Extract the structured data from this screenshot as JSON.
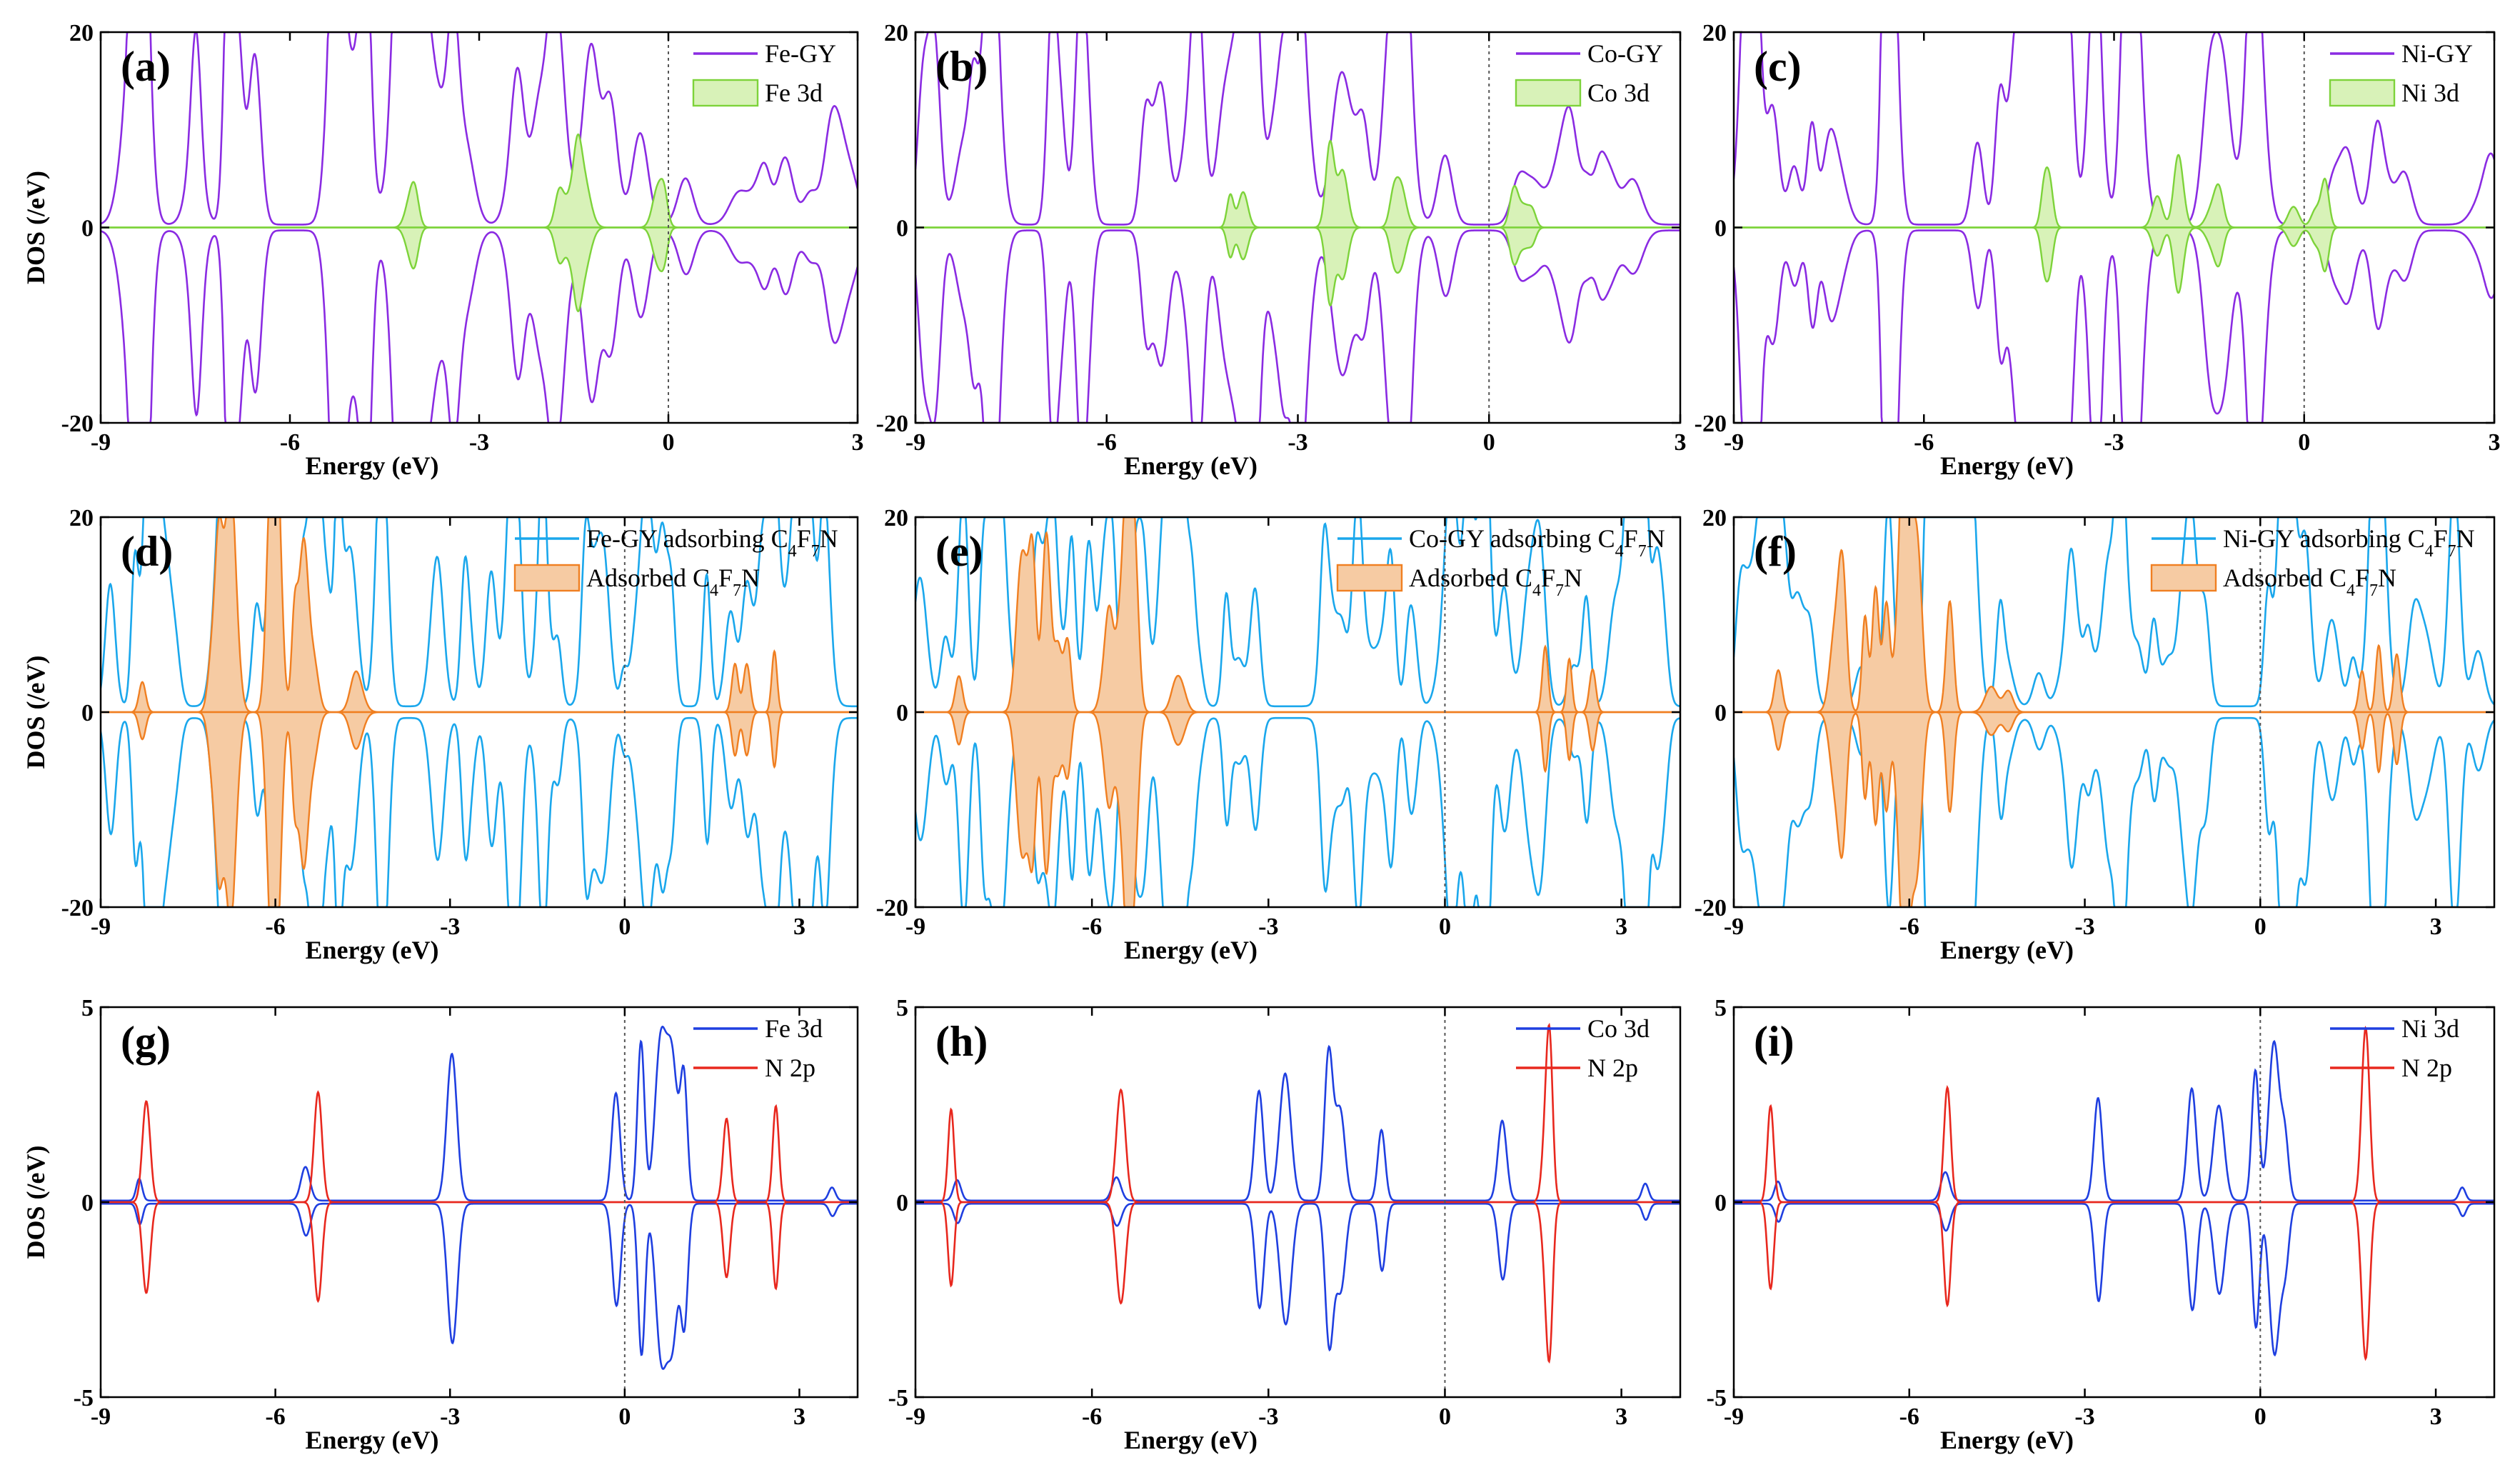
{
  "figure": {
    "panel_rows": [
      {
        "layout_row": 0,
        "panels": [
          "a",
          "b",
          "c"
        ]
      },
      {
        "layout_row": 1,
        "panels": [
          "d",
          "e",
          "f"
        ]
      },
      {
        "layout_row": 2,
        "panels": [
          "g",
          "h",
          "i"
        ]
      }
    ]
  },
  "chart_data": [
    {
      "panel": "(a)",
      "type": "line",
      "metal": "Fe",
      "kind": "metal_total",
      "xlabel": "Energy (eV)",
      "ylabel": "DOS (/eV)",
      "xlim": [
        -9,
        3
      ],
      "ylim": [
        -20,
        20
      ],
      "xticks": [
        -9,
        -6,
        -3,
        0,
        3
      ],
      "yticks": [
        -20,
        0,
        20
      ],
      "xtick_labels": [
        "-9",
        "-6",
        "-3",
        "0",
        "3"
      ],
      "ytick_labels": [
        "-20",
        "0",
        "20"
      ],
      "fermi_line": 0,
      "legend_placement": "top-right",
      "series": [
        {
          "name": "Fe-GY",
          "style": "line",
          "color": "#8a2be2"
        },
        {
          "name": "Fe 3d",
          "style": "filled",
          "color": "#7dd33a",
          "fill": "#d8f2b8"
        }
      ]
    },
    {
      "panel": "(b)",
      "type": "line",
      "metal": "Co",
      "kind": "metal_total",
      "xlabel": "Energy (eV)",
      "ylabel": "",
      "xlim": [
        -9,
        3
      ],
      "ylim": [
        -20,
        20
      ],
      "xticks": [
        -9,
        -6,
        -3,
        0,
        3
      ],
      "yticks": [
        -20,
        0,
        20
      ],
      "xtick_labels": [
        "-9",
        "-6",
        "-3",
        "0",
        "3"
      ],
      "ytick_labels": [
        "-20",
        "0",
        "20"
      ],
      "fermi_line": 0,
      "legend_placement": "top-right",
      "series": [
        {
          "name": "Co-GY",
          "style": "line",
          "color": "#8a2be2"
        },
        {
          "name": "Co 3d",
          "style": "filled",
          "color": "#7dd33a",
          "fill": "#d8f2b8"
        }
      ]
    },
    {
      "panel": "(c)",
      "type": "line",
      "metal": "Ni",
      "kind": "metal_total",
      "xlabel": "Energy (eV)",
      "ylabel": "",
      "xlim": [
        -9,
        3
      ],
      "ylim": [
        -20,
        20
      ],
      "xticks": [
        -9,
        -6,
        -3,
        0,
        3
      ],
      "yticks": [
        -20,
        0,
        20
      ],
      "xtick_labels": [
        "-9",
        "-6",
        "-3",
        "0",
        "3"
      ],
      "ytick_labels": [
        "-20",
        "0",
        "20"
      ],
      "fermi_line": 0,
      "legend_placement": "top-right",
      "series": [
        {
          "name": "Ni-GY",
          "style": "line",
          "color": "#8a2be2"
        },
        {
          "name": "Ni 3d",
          "style": "filled",
          "color": "#7dd33a",
          "fill": "#d8f2b8"
        }
      ]
    },
    {
      "panel": "(d)",
      "type": "line",
      "metal": "Fe",
      "kind": "adsorption",
      "xlabel": "Energy (eV)",
      "ylabel": "DOS (/eV)",
      "xlim": [
        -9,
        4
      ],
      "ylim": [
        -20,
        20
      ],
      "xticks": [
        -9,
        -6,
        -3,
        0,
        3
      ],
      "yticks": [
        -20,
        0,
        20
      ],
      "xtick_labels": [
        "-9",
        "-6",
        "-3",
        "0",
        "3"
      ],
      "ytick_labels": [
        "-20",
        "0",
        "20"
      ],
      "fermi_line": 0,
      "legend_placement": "top-right",
      "series": [
        {
          "name": "Fe-GY adsorbing C4F7N",
          "style": "line",
          "color": "#1aa7ec"
        },
        {
          "name": "Adsorbed C4F7N",
          "style": "filled",
          "color": "#f07f21",
          "fill": "#f6cba3"
        }
      ]
    },
    {
      "panel": "(e)",
      "type": "line",
      "metal": "Co",
      "kind": "adsorption",
      "xlabel": "Energy (eV)",
      "ylabel": "",
      "xlim": [
        -9,
        4
      ],
      "ylim": [
        -20,
        20
      ],
      "xticks": [
        -9,
        -6,
        -3,
        0,
        3
      ],
      "yticks": [
        -20,
        0,
        20
      ],
      "xtick_labels": [
        "-9",
        "-6",
        "-3",
        "0",
        "3"
      ],
      "ytick_labels": [
        "-20",
        "0",
        "20"
      ],
      "fermi_line": 0,
      "legend_placement": "top-right",
      "series": [
        {
          "name": "Co-GY adsorbing C4F7N",
          "style": "line",
          "color": "#1aa7ec"
        },
        {
          "name": "Adsorbed C4F7N",
          "style": "filled",
          "color": "#f07f21",
          "fill": "#f6cba3"
        }
      ]
    },
    {
      "panel": "(f)",
      "type": "line",
      "metal": "Ni",
      "kind": "adsorption",
      "xlabel": "Energy (eV)",
      "ylabel": "",
      "xlim": [
        -9,
        4
      ],
      "ylim": [
        -20,
        20
      ],
      "xticks": [
        -9,
        -6,
        -3,
        0,
        3
      ],
      "yticks": [
        -20,
        0,
        20
      ],
      "xtick_labels": [
        "-9",
        "-6",
        "-3",
        "0",
        "3"
      ],
      "ytick_labels": [
        "-20",
        "0",
        "20"
      ],
      "fermi_line": 0,
      "legend_placement": "top-right",
      "series": [
        {
          "name": "Ni-GY adsorbing C4F7N",
          "style": "line",
          "color": "#1aa7ec"
        },
        {
          "name": "Adsorbed C4F7N",
          "style": "filled",
          "color": "#f07f21",
          "fill": "#f6cba3"
        }
      ]
    },
    {
      "panel": "(g)",
      "type": "line",
      "metal": "Fe",
      "kind": "orbital",
      "xlabel": "Energy (eV)",
      "ylabel": "DOS (/eV)",
      "xlim": [
        -9,
        4
      ],
      "ylim": [
        -5,
        5
      ],
      "xticks": [
        -9,
        -6,
        -3,
        0,
        3
      ],
      "yticks": [
        -5,
        0,
        5
      ],
      "xtick_labels": [
        "-9",
        "-6",
        "-3",
        "0",
        "3"
      ],
      "ytick_labels": [
        "-5",
        "0",
        "5"
      ],
      "fermi_line": 0,
      "legend_placement": "top-right",
      "series": [
        {
          "name": "Fe 3d",
          "style": "line",
          "color": "#1f3fe0"
        },
        {
          "name": "N 2p",
          "style": "line",
          "color": "#e8281e"
        }
      ]
    },
    {
      "panel": "(h)",
      "type": "line",
      "metal": "Co",
      "kind": "orbital",
      "xlabel": "Energy (eV)",
      "ylabel": "",
      "xlim": [
        -9,
        4
      ],
      "ylim": [
        -5,
        5
      ],
      "xticks": [
        -9,
        -6,
        -3,
        0,
        3
      ],
      "yticks": [
        -5,
        0,
        5
      ],
      "xtick_labels": [
        "-9",
        "-6",
        "-3",
        "0",
        "3"
      ],
      "ytick_labels": [
        "-5",
        "0",
        "5"
      ],
      "fermi_line": 0,
      "legend_placement": "top-right",
      "series": [
        {
          "name": "Co 3d",
          "style": "line",
          "color": "#1f3fe0"
        },
        {
          "name": "N 2p",
          "style": "line",
          "color": "#e8281e"
        }
      ]
    },
    {
      "panel": "(i)",
      "type": "line",
      "metal": "Ni",
      "kind": "orbital",
      "xlabel": "Energy (eV)",
      "ylabel": "",
      "xlim": [
        -9,
        4
      ],
      "ylim": [
        -5,
        5
      ],
      "xticks": [
        -9,
        -6,
        -3,
        0,
        3
      ],
      "yticks": [
        -5,
        0,
        5
      ],
      "xtick_labels": [
        "-9",
        "-6",
        "-3",
        "0",
        "3"
      ],
      "ytick_labels": [
        "-5",
        "0",
        "5"
      ],
      "fermi_line": 0,
      "legend_placement": "top-right",
      "series": [
        {
          "name": "Ni 3d",
          "style": "line",
          "color": "#1f3fe0"
        },
        {
          "name": "N 2p",
          "style": "line",
          "color": "#e8281e"
        }
      ]
    }
  ]
}
